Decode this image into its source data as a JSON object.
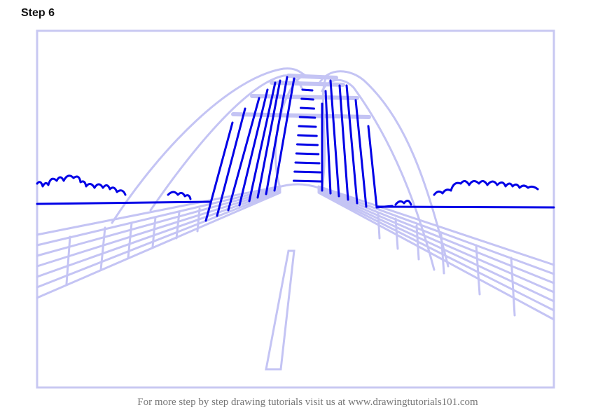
{
  "step_title": "Step 6",
  "footer_text": "For more step by step drawing tutorials visit us at www.drawingtutorials101.com",
  "colors": {
    "guide": "#c4c4f4",
    "ink": "#0000e6",
    "frame": "#c8c8f2"
  }
}
